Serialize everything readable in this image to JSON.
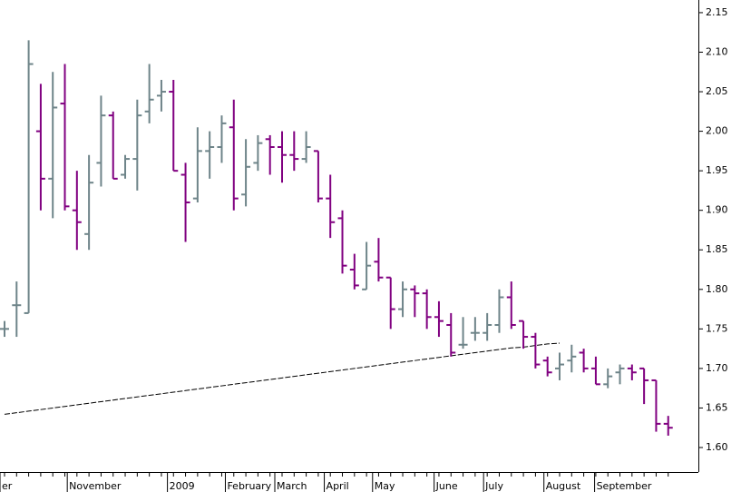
{
  "chart_data": {
    "type": "ohlc",
    "x": [
      0,
      1,
      2,
      3,
      4,
      5,
      6,
      7,
      8,
      9,
      10,
      11,
      12,
      13,
      14,
      15,
      16,
      17,
      18,
      19,
      20,
      21,
      22,
      23,
      24,
      25,
      26,
      27,
      28,
      29,
      30,
      31,
      32,
      33,
      34,
      35,
      36,
      37,
      38,
      39,
      40,
      41,
      42,
      43,
      44,
      45,
      46,
      47,
      48,
      49,
      50,
      51,
      52,
      53,
      54,
      55
    ],
    "open": [
      1.75,
      1.78,
      1.77,
      2.0,
      1.94,
      2.035,
      1.9,
      1.87,
      1.96,
      2.02,
      1.945,
      1.965,
      2.025,
      2.045,
      2.05,
      1.945,
      1.915,
      1.975,
      1.98,
      2.005,
      1.92,
      1.96,
      1.99,
      1.98,
      1.97,
      1.965,
      1.975,
      1.915,
      1.89,
      1.825,
      1.8,
      1.835,
      1.815,
      1.775,
      1.8,
      1.795,
      1.765,
      1.755,
      1.73,
      1.745,
      1.745,
      1.755,
      1.79,
      1.76,
      1.74,
      1.71,
      1.7,
      1.71,
      1.72,
      1.7,
      1.68,
      1.695,
      1.7,
      1.7,
      1.685,
      1.63
    ],
    "high": [
      1.76,
      1.81,
      2.115,
      2.06,
      2.075,
      2.085,
      1.95,
      1.97,
      2.045,
      2.025,
      1.97,
      2.04,
      2.085,
      2.065,
      2.065,
      1.96,
      2.005,
      2.0,
      2.02,
      2.04,
      1.99,
      1.995,
      1.995,
      2.0,
      2.0,
      2.0,
      1.975,
      1.945,
      1.9,
      1.845,
      1.86,
      1.865,
      1.815,
      1.81,
      1.805,
      1.8,
      1.785,
      1.77,
      1.765,
      1.765,
      1.77,
      1.8,
      1.81,
      1.76,
      1.745,
      1.715,
      1.72,
      1.73,
      1.725,
      1.715,
      1.7,
      1.705,
      1.705,
      1.7,
      1.685,
      1.64
    ],
    "low": [
      1.74,
      1.74,
      1.77,
      1.9,
      1.89,
      1.9,
      1.85,
      1.85,
      1.93,
      1.94,
      1.94,
      1.925,
      2.01,
      2.025,
      1.95,
      1.86,
      1.91,
      1.94,
      1.96,
      1.9,
      1.905,
      1.95,
      1.945,
      1.935,
      1.95,
      1.96,
      1.91,
      1.865,
      1.82,
      1.8,
      1.8,
      1.81,
      1.75,
      1.765,
      1.765,
      1.75,
      1.74,
      1.715,
      1.725,
      1.735,
      1.735,
      1.745,
      1.75,
      1.725,
      1.7,
      1.69,
      1.685,
      1.695,
      1.695,
      1.68,
      1.675,
      1.68,
      1.685,
      1.655,
      1.62,
      1.615
    ],
    "close": [
      1.75,
      1.78,
      2.085,
      1.94,
      2.03,
      1.905,
      1.885,
      1.935,
      2.02,
      1.94,
      1.965,
      2.02,
      2.04,
      2.05,
      1.95,
      1.91,
      1.975,
      1.98,
      2.01,
      1.915,
      1.955,
      1.985,
      1.98,
      1.97,
      1.965,
      1.98,
      1.915,
      1.885,
      1.83,
      1.805,
      1.83,
      1.815,
      1.775,
      1.8,
      1.795,
      1.765,
      1.76,
      1.72,
      1.73,
      1.745,
      1.755,
      1.79,
      1.755,
      1.74,
      1.705,
      1.695,
      1.705,
      1.715,
      1.7,
      1.68,
      1.69,
      1.7,
      1.695,
      1.685,
      1.63,
      1.625
    ],
    "moving_average": [
      1.642,
      1.644,
      1.646,
      1.648,
      1.65,
      1.652,
      1.654,
      1.656,
      1.658,
      1.66,
      1.662,
      1.664,
      1.666,
      1.668,
      1.67,
      1.672,
      1.674,
      1.676,
      1.678,
      1.68,
      1.682,
      1.684,
      1.686,
      1.688,
      1.69,
      1.692,
      1.694,
      1.696,
      1.698,
      1.7,
      1.702,
      1.704,
      1.706,
      1.708,
      1.71,
      1.712,
      1.714,
      1.716,
      1.718,
      1.72,
      1.722,
      1.724,
      1.726,
      1.727,
      1.729,
      1.731,
      1.732,
      null,
      null,
      null,
      null,
      null,
      null,
      null,
      null,
      null
    ],
    "up_color": "#6e8489",
    "down_color": "#800080",
    "ma_color": "#000000",
    "xlim": [
      -0.375,
      57.5
    ],
    "xticks": [
      {
        "value": -0.375,
        "label": "er"
      },
      {
        "value": 5.2,
        "label": "November"
      },
      {
        "value": 13.5,
        "label": "2009"
      },
      {
        "value": 18.3,
        "label": "February"
      },
      {
        "value": 22.4,
        "label": "March"
      },
      {
        "value": 26.5,
        "label": "April"
      },
      {
        "value": 30.5,
        "label": "May"
      },
      {
        "value": 35.6,
        "label": "June"
      },
      {
        "value": 39.7,
        "label": "July"
      },
      {
        "value": 44.7,
        "label": "August"
      },
      {
        "value": 48.9,
        "label": "September"
      }
    ],
    "ylim": [
      1.569,
      2.166
    ],
    "yticks": [
      {
        "value": 1.6,
        "label": "1.60"
      },
      1.65,
      {
        "value": 1.7,
        "label": "1.70"
      },
      1.75,
      {
        "value": 1.8,
        "label": "1.80"
      },
      1.85,
      {
        "value": 1.9,
        "label": "1.90"
      },
      1.95,
      {
        "value": 2.0,
        "label": "2.00"
      },
      2.05,
      {
        "value": 2.1,
        "label": "2.10"
      },
      2.15
    ]
  }
}
